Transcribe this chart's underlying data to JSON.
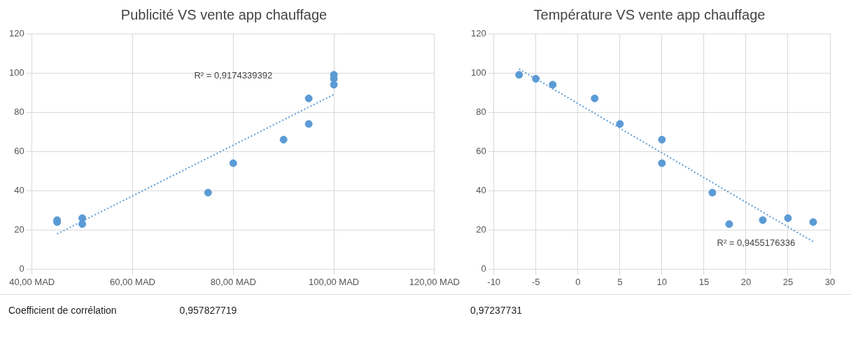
{
  "chart_data": [
    {
      "type": "scatter",
      "title": "Publicité VS vente app chauffage",
      "marker": "circle",
      "grid": true,
      "legend": false,
      "xlim": [
        40,
        120
      ],
      "xticks": [
        {
          "value": 40,
          "label": "40,00 MAD"
        },
        {
          "value": 60,
          "label": "60,00 MAD"
        },
        {
          "value": 80,
          "label": "80,00 MAD"
        },
        {
          "value": 100,
          "label": "100,00 MAD"
        },
        {
          "value": 120,
          "label": "120,00 MAD"
        }
      ],
      "ylim": [
        0,
        120
      ],
      "yticks": [
        0,
        20,
        40,
        60,
        80,
        100,
        120
      ],
      "series": [
        {
          "color": "#5b9bd5",
          "x": [
            45,
            45,
            50,
            50,
            75,
            80,
            90,
            95,
            95,
            100,
            100,
            100
          ],
          "values": [
            25,
            24,
            26,
            23,
            39,
            54,
            66,
            87,
            74,
            99,
            97,
            94
          ]
        },
        {
          "type": "line",
          "line_style": "dotted",
          "marker": "none",
          "color": "#5b9bd5",
          "x": [
            45,
            100
          ],
          "values": [
            18,
            89
          ]
        }
      ],
      "annotations": [
        "R² = 0,9174339392",
        "Coefficient de corrélation",
        "0,957827719"
      ]
    },
    {
      "type": "scatter",
      "title": "Température VS vente app chauffage",
      "marker": "circle",
      "grid": true,
      "legend": false,
      "xlim": [
        -10,
        30
      ],
      "xticks": [
        -10,
        -5,
        0,
        5,
        10,
        15,
        20,
        25,
        30
      ],
      "ylim": [
        0,
        120
      ],
      "yticks": [
        0,
        20,
        40,
        60,
        80,
        100,
        120
      ],
      "series": [
        {
          "color": "#5b9bd5",
          "x": [
            -7,
            -5,
            -3,
            2,
            5,
            10,
            10,
            16,
            18,
            22,
            25,
            28
          ],
          "values": [
            99,
            97,
            94,
            87,
            74,
            66,
            54,
            39,
            23,
            25,
            26,
            24
          ]
        },
        {
          "type": "line",
          "line_style": "dotted",
          "marker": "none",
          "color": "#5b9bd5",
          "x": [
            -7,
            28
          ],
          "values": [
            102,
            14
          ]
        }
      ],
      "annotations": [
        "R² = 0,9455176336",
        "0,97237731"
      ]
    }
  ]
}
